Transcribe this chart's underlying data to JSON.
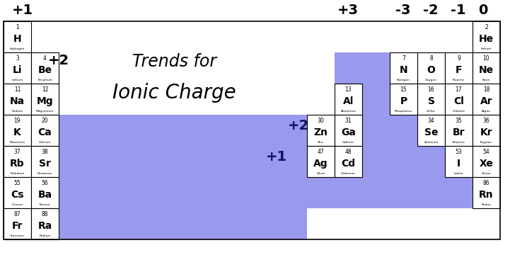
{
  "figsize": [
    7.21,
    3.6
  ],
  "dpi": 100,
  "bg_color": "#ffffff",
  "blue_color": "#9999ee",
  "title_line1": "Trends for",
  "title_line2": "Ionic Charge",
  "elements": [
    {
      "num": "1",
      "sym": "H",
      "name": "Hydrogen",
      "col": 0,
      "row": 0
    },
    {
      "num": "3",
      "sym": "Li",
      "name": "Lithium",
      "col": 0,
      "row": 1
    },
    {
      "num": "4",
      "sym": "Be",
      "name": "Beryllium",
      "col": 1,
      "row": 1
    },
    {
      "num": "11",
      "sym": "Na",
      "name": "Sodium",
      "col": 0,
      "row": 2
    },
    {
      "num": "12",
      "sym": "Mg",
      "name": "Magnesium",
      "col": 1,
      "row": 2
    },
    {
      "num": "19",
      "sym": "K",
      "name": "Potassium",
      "col": 0,
      "row": 3
    },
    {
      "num": "20",
      "sym": "Ca",
      "name": "Calcium",
      "col": 1,
      "row": 3
    },
    {
      "num": "37",
      "sym": "Rb",
      "name": "Rubidium",
      "col": 0,
      "row": 4
    },
    {
      "num": "38",
      "sym": "Sr",
      "name": "Strontium",
      "col": 1,
      "row": 4
    },
    {
      "num": "55",
      "sym": "Cs",
      "name": "Cesium",
      "col": 0,
      "row": 5
    },
    {
      "num": "56",
      "sym": "Ba",
      "name": "Barium",
      "col": 1,
      "row": 5
    },
    {
      "num": "87",
      "sym": "Fr",
      "name": "Francium",
      "col": 0,
      "row": 6
    },
    {
      "num": "88",
      "sym": "Ra",
      "name": "Radium",
      "col": 1,
      "row": 6
    },
    {
      "num": "13",
      "sym": "Al",
      "name": "Aluminum",
      "col": 12,
      "row": 2
    },
    {
      "num": "30",
      "sym": "Zn",
      "name": "Zinc",
      "col": 11,
      "row": 3
    },
    {
      "num": "31",
      "sym": "Ga",
      "name": "Gallium",
      "col": 12,
      "row": 3
    },
    {
      "num": "47",
      "sym": "Ag",
      "name": "Silver",
      "col": 11,
      "row": 4
    },
    {
      "num": "48",
      "sym": "Cd",
      "name": "Cadmium",
      "col": 12,
      "row": 4
    },
    {
      "num": "2",
      "sym": "He",
      "name": "Helium",
      "col": 17,
      "row": 0
    },
    {
      "num": "7",
      "sym": "N",
      "name": "Nitrogen",
      "col": 14,
      "row": 1
    },
    {
      "num": "8",
      "sym": "O",
      "name": "Oxygen",
      "col": 15,
      "row": 1
    },
    {
      "num": "9",
      "sym": "F",
      "name": "Fluorine",
      "col": 16,
      "row": 1
    },
    {
      "num": "10",
      "sym": "Ne",
      "name": "Neon",
      "col": 17,
      "row": 1
    },
    {
      "num": "15",
      "sym": "P",
      "name": "Phosphorus",
      "col": 14,
      "row": 2
    },
    {
      "num": "16",
      "sym": "S",
      "name": "Sulfur",
      "col": 15,
      "row": 2
    },
    {
      "num": "17",
      "sym": "Cl",
      "name": "Chlorine",
      "col": 16,
      "row": 2
    },
    {
      "num": "18",
      "sym": "Ar",
      "name": "Argon",
      "col": 17,
      "row": 2
    },
    {
      "num": "34",
      "sym": "Se",
      "name": "Selenium",
      "col": 15,
      "row": 3
    },
    {
      "num": "35",
      "sym": "Br",
      "name": "Bromine",
      "col": 16,
      "row": 3
    },
    {
      "num": "36",
      "sym": "Kr",
      "name": "Krypton",
      "col": 17,
      "row": 3
    },
    {
      "num": "53",
      "sym": "I",
      "name": "Iodine",
      "col": 16,
      "row": 4
    },
    {
      "num": "54",
      "sym": "Xe",
      "name": "Xenon",
      "col": 17,
      "row": 4
    },
    {
      "num": "86",
      "sym": "Rn",
      "name": "Radon",
      "col": 17,
      "row": 5
    }
  ]
}
